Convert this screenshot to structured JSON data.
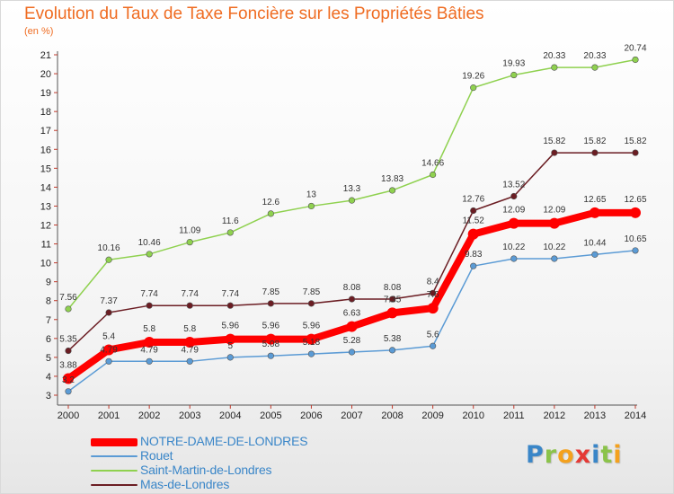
{
  "title": "Evolution du Taux de Taxe Foncière sur les Propriétés Bâties",
  "subtitle": "(en %)",
  "logo_letters": [
    {
      "ch": "P",
      "color": "#3a86c8"
    },
    {
      "ch": "r",
      "color": "#8bc34a"
    },
    {
      "ch": "o",
      "color": "#f4a11d"
    },
    {
      "ch": "x",
      "color": "#e53935"
    },
    {
      "ch": "i",
      "color": "#3a86c8"
    },
    {
      "ch": "t",
      "color": "#8bc34a"
    },
    {
      "ch": "i",
      "color": "#f4a11d"
    }
  ],
  "chart_data": {
    "type": "line",
    "x": [
      2000,
      2001,
      2002,
      2003,
      2004,
      2005,
      2006,
      2007,
      2008,
      2009,
      2010,
      2011,
      2012,
      2013,
      2014
    ],
    "ylim": [
      3,
      21
    ],
    "yticks": [
      3,
      4,
      5,
      6,
      7,
      8,
      9,
      10,
      11,
      12,
      13,
      14,
      15,
      16,
      17,
      18,
      19,
      20,
      21
    ],
    "grid": false,
    "legend_position": "bottom-left",
    "series": [
      {
        "name": "NOTRE-DAME-DE-LONDRES",
        "color": "#ff0000",
        "values": [
          3.88,
          5.4,
          5.8,
          5.8,
          5.96,
          5.96,
          5.96,
          6.63,
          7.35,
          7.6,
          11.52,
          12.09,
          12.09,
          12.65,
          12.65
        ],
        "labels": [
          "3.88",
          "5.4",
          "5.8",
          "5.8",
          "5.96",
          "5.96",
          "5.96",
          "6.63",
          "7.35",
          "7.6",
          "11.52",
          "12.09",
          "12.09",
          "12.65",
          "12.65"
        ]
      },
      {
        "name": "Rouet",
        "color": "#5b9bd5",
        "values": [
          3.2,
          4.79,
          4.79,
          4.79,
          5,
          5.08,
          5.18,
          5.28,
          5.38,
          5.6,
          9.83,
          10.22,
          10.22,
          10.44,
          10.65
        ],
        "labels": [
          "3.2",
          "4.79",
          "4.79",
          "4.79",
          "5",
          "5.08",
          "5.18",
          "5.28",
          "5.38",
          "5.6",
          "9.83",
          "10.22",
          "10.22",
          "10.44",
          "10.65"
        ]
      },
      {
        "name": "Saint-Martin-de-Londres",
        "color": "#8fd14f",
        "values": [
          7.56,
          10.16,
          10.46,
          11.09,
          11.6,
          12.6,
          13,
          13.3,
          13.83,
          14.66,
          19.26,
          19.93,
          20.33,
          20.33,
          20.74
        ],
        "labels": [
          "7.56",
          "10.16",
          "10.46",
          "11.09",
          "11.6",
          "12.6",
          "13",
          "13.3",
          "13.83",
          "14.66",
          "19.26",
          "19.93",
          "20.33",
          "20.33",
          "20.74"
        ]
      },
      {
        "name": "Mas-de-Londres",
        "color": "#6b1d23",
        "values": [
          5.35,
          7.37,
          7.74,
          7.74,
          7.74,
          7.85,
          7.85,
          8.08,
          8.08,
          8.4,
          12.76,
          13.52,
          15.82,
          15.82,
          15.82
        ],
        "labels": [
          "5.35",
          "7.37",
          "7.74",
          "7.74",
          "7.74",
          "7.85",
          "7.85",
          "8.08",
          "8.08",
          "8.4",
          "12.76",
          "13.52",
          "15.82",
          "15.82",
          "15.82"
        ]
      }
    ]
  }
}
